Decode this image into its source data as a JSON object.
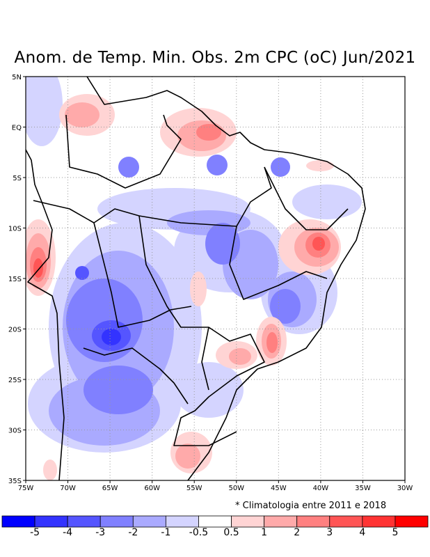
{
  "title": "Anom. de Temp. Min. Obs. 2m CPC (oC) Jun/2021",
  "note": "* Climatologia entre 2011 e 2018",
  "map": {
    "lon_ticks": [
      "75W",
      "70W",
      "65W",
      "60W",
      "55W",
      "50W",
      "45W",
      "40W",
      "35W",
      "30W"
    ],
    "lat_ticks": [
      "5N",
      "EQ",
      "5S",
      "10S",
      "15S",
      "20S",
      "25S",
      "30S",
      "35S"
    ],
    "lon_range": [
      -75,
      -30
    ],
    "lat_range": [
      -35,
      5
    ]
  },
  "colorbar": {
    "colors": [
      "#0000ff",
      "#3333ff",
      "#5555ff",
      "#8080ff",
      "#aaaaff",
      "#d4d4ff",
      "#ffffff",
      "#ffd4d4",
      "#ffaaaa",
      "#ff8080",
      "#ff5555",
      "#ff3333",
      "#ff0000"
    ],
    "labels": [
      "-5",
      "-4",
      "-3",
      "-2",
      "-1",
      "-0.5",
      "0.5",
      "1",
      "2",
      "3",
      "4",
      "5"
    ]
  }
}
